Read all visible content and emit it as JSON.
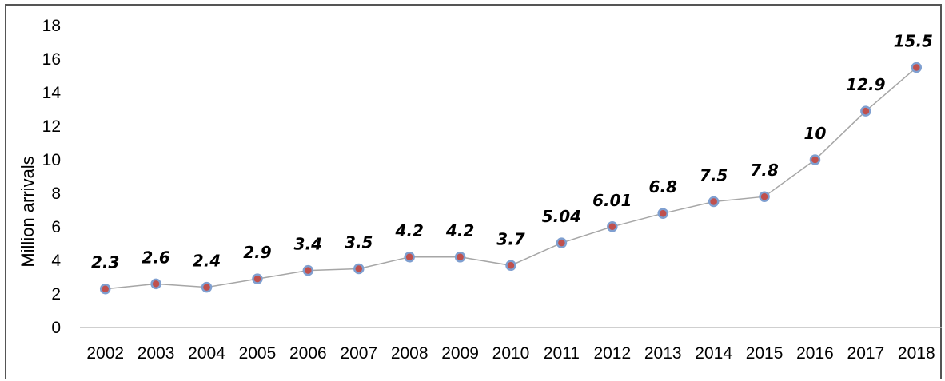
{
  "chart_data": {
    "type": "line",
    "title": "",
    "xlabel": "",
    "ylabel": "Million arrivals",
    "ylim": [
      0,
      18
    ],
    "yticks": [
      0,
      2,
      4,
      6,
      8,
      10,
      12,
      14,
      16,
      18
    ],
    "grid": false,
    "legend": "none",
    "categories": [
      "2002",
      "2003",
      "2004",
      "2005",
      "2006",
      "2007",
      "2008",
      "2009",
      "2010",
      "2011",
      "2012",
      "2013",
      "2014",
      "2015",
      "2016",
      "2017",
      "2018"
    ],
    "series": [
      {
        "values": [
          2.3,
          2.6,
          2.4,
          2.9,
          3.4,
          3.5,
          4.2,
          4.2,
          3.7,
          5.04,
          6.01,
          6.8,
          7.5,
          7.8,
          10,
          12.9,
          15.5
        ],
        "labels": [
          "2.3",
          "2.6",
          "2.4",
          "2.9",
          "3.4",
          "3.5",
          "4.2",
          "4.2",
          "3.7",
          "5.04",
          "6.01",
          "6.8",
          "7.5",
          "7.8",
          "10",
          "12.9",
          "15.5"
        ]
      }
    ],
    "colors": {
      "line": "#a6a6a6",
      "marker_fill": "#c0504d",
      "marker_stroke": "#7f9fd0",
      "axis": "#bfbfbf",
      "frame": "#555555"
    }
  }
}
